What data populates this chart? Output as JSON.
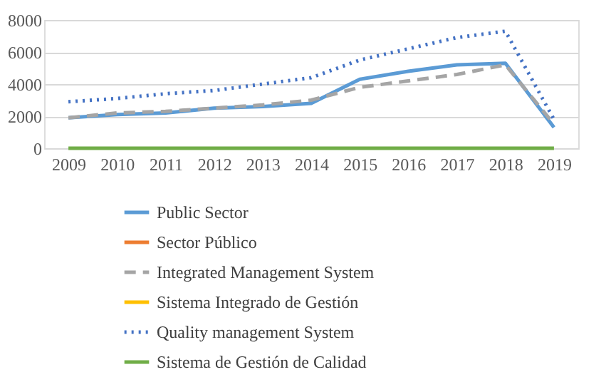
{
  "chart_data": {
    "type": "line",
    "categories": [
      "2009",
      "2010",
      "2011",
      "2012",
      "2013",
      "2014",
      "2015",
      "2016",
      "2017",
      "2018",
      "2019"
    ],
    "series": [
      {
        "name": "Public Sector",
        "color": "#5b9bd5",
        "line_style": "solid",
        "values": [
          1900,
          2100,
          2200,
          2500,
          2600,
          2800,
          4300,
          4800,
          5200,
          5300,
          1300
        ]
      },
      {
        "name": "Sector Público",
        "color": "#ed7d31",
        "line_style": "solid",
        "values": [
          null,
          null,
          null,
          null,
          null,
          null,
          null,
          null,
          null,
          null,
          null
        ]
      },
      {
        "name": "Integrated Management System",
        "color": "#a5a5a5",
        "line_style": "dashed",
        "values": [
          1900,
          2200,
          2300,
          2500,
          2700,
          3000,
          3800,
          4200,
          4600,
          5200,
          1500
        ]
      },
      {
        "name": "Sistema Integrado de Gestión",
        "color": "#ffc000",
        "line_style": "solid",
        "values": [
          null,
          null,
          null,
          null,
          null,
          null,
          null,
          null,
          null,
          null,
          null
        ]
      },
      {
        "name": "Quality management System",
        "color": "#4472c4",
        "line_style": "dotted",
        "values": [
          2900,
          3100,
          3400,
          3600,
          4000,
          4400,
          5500,
          6200,
          6900,
          7300,
          1800
        ]
      },
      {
        "name": "Sistema de Gestión de Calidad",
        "color": "#70ad47",
        "line_style": "solid",
        "values": [
          0,
          0,
          0,
          0,
          0,
          0,
          0,
          0,
          0,
          0,
          0
        ]
      }
    ],
    "ylim": [
      0,
      8000
    ],
    "yticks": [
      0,
      2000,
      4000,
      6000,
      8000
    ],
    "grid": "y",
    "legend": "bottom",
    "marker": "none"
  }
}
